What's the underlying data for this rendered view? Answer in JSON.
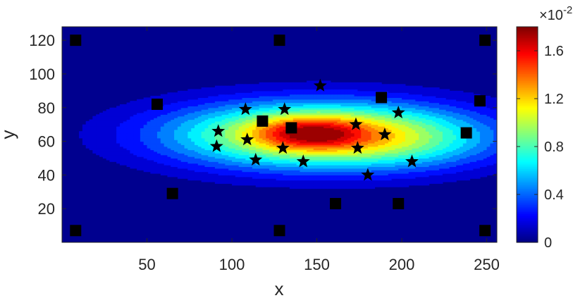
{
  "chart_data": {
    "type": "heatmap",
    "subtype": "filled-contour with scatter markers",
    "xlabel": "x",
    "ylabel": "y",
    "xlim": [
      0,
      256
    ],
    "ylim": [
      0,
      128
    ],
    "xticks": [
      50,
      100,
      150,
      200,
      250
    ],
    "yticks": [
      20,
      40,
      60,
      80,
      100,
      120
    ],
    "grid": false,
    "colormap": "jet",
    "colorbar": {
      "multiplier_base": "×10",
      "multiplier_exp": "-2",
      "lim": [
        0,
        1.8
      ],
      "ticks": [
        0,
        0.4,
        0.8,
        1.2,
        1.6
      ],
      "ticklabels": [
        "0",
        "0.4",
        "0.8",
        "1.2",
        "1.6"
      ]
    },
    "contour_levels": [
      0.1,
      0.2,
      0.3,
      0.4,
      0.5,
      0.6,
      0.7,
      0.8,
      0.9,
      1.0,
      1.1,
      1.2,
      1.3,
      1.4,
      1.5,
      1.6,
      1.7
    ],
    "field": {
      "components": [
        {
          "cx": 150,
          "cy": 64,
          "sx": 62,
          "sy": 14,
          "amp": 1.25
        },
        {
          "cx": 146,
          "cy": 65,
          "sx": 22,
          "sy": 6.5,
          "amp": 0.55
        },
        {
          "cx": 205,
          "cy": 60,
          "sx": 40,
          "sy": 12,
          "amp": 0.22
        }
      ]
    },
    "series": [
      {
        "marker": "square",
        "color": "#000000",
        "points": [
          [
            8,
            120
          ],
          [
            128,
            120
          ],
          [
            249,
            120
          ],
          [
            56,
            82
          ],
          [
            188,
            86
          ],
          [
            246,
            84
          ],
          [
            118,
            72
          ],
          [
            135,
            68
          ],
          [
            238,
            65
          ],
          [
            65,
            29
          ],
          [
            161,
            23
          ],
          [
            198,
            23
          ],
          [
            8,
            7
          ],
          [
            128,
            7
          ],
          [
            249,
            7
          ]
        ]
      },
      {
        "marker": "star",
        "color": "#000000",
        "points": [
          [
            152,
            93
          ],
          [
            108,
            79
          ],
          [
            131,
            79
          ],
          [
            198,
            77
          ],
          [
            92,
            66
          ],
          [
            173,
            70
          ],
          [
            190,
            64
          ],
          [
            109,
            61
          ],
          [
            91,
            57
          ],
          [
            130,
            56
          ],
          [
            174,
            56
          ],
          [
            114,
            49
          ],
          [
            142,
            48
          ],
          [
            206,
            48
          ],
          [
            180,
            40
          ]
        ]
      }
    ]
  }
}
